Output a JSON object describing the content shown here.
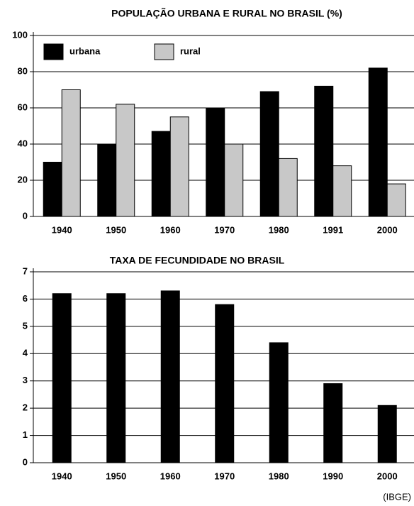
{
  "chart_data": [
    {
      "type": "bar",
      "title": "POPULAÇÃO URBANA E RURAL NO BRASIL (%)",
      "categories": [
        "1940",
        "1950",
        "1960",
        "1970",
        "1980",
        "1991",
        "2000"
      ],
      "series": [
        {
          "name": "urbana",
          "color": "#000000",
          "values": [
            30,
            40,
            47,
            60,
            69,
            72,
            82
          ]
        },
        {
          "name": "rural",
          "color": "#c8c8c8",
          "values": [
            70,
            62,
            55,
            40,
            32,
            28,
            18
          ]
        }
      ],
      "ylim": [
        0,
        100
      ],
      "yticks": [
        0,
        20,
        40,
        60,
        80,
        100
      ],
      "grid": true,
      "legend": "upper left"
    },
    {
      "type": "bar",
      "title": "TAXA DE FECUNDIDADE NO BRASIL",
      "categories": [
        "1940",
        "1950",
        "1960",
        "1970",
        "1980",
        "1990",
        "2000"
      ],
      "values": [
        6.2,
        6.2,
        6.3,
        5.8,
        4.4,
        2.9,
        2.1
      ],
      "color": "#000000",
      "ylim": [
        0,
        7
      ],
      "yticks": [
        0,
        1,
        2,
        3,
        4,
        5,
        6,
        7
      ],
      "grid": true
    }
  ],
  "source": "(IBGE)"
}
